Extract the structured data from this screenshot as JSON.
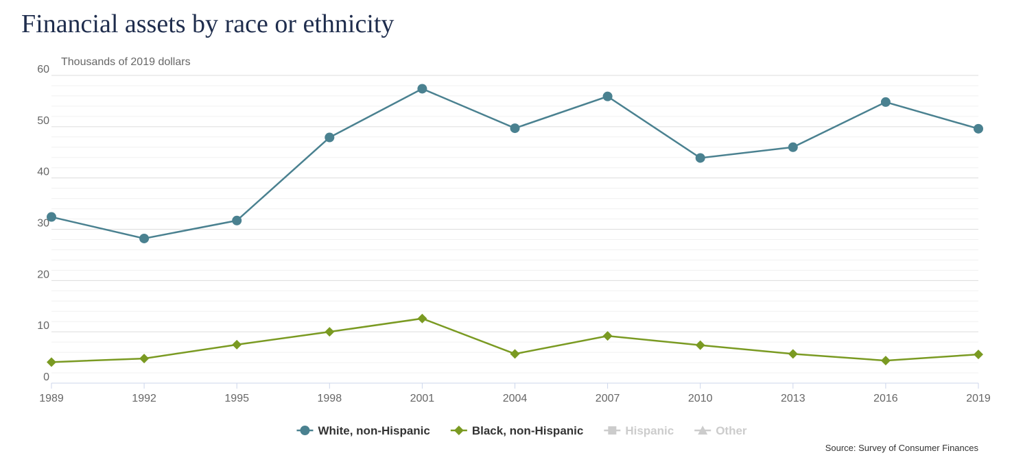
{
  "chart_data": {
    "type": "line",
    "title": "Financial assets by race or ethnicity",
    "y_label": "Thousands of 2019 dollars",
    "source": "Source: Survey of Consumer Finances",
    "categories": [
      "1989",
      "1992",
      "1995",
      "1998",
      "2001",
      "2004",
      "2007",
      "2010",
      "2013",
      "2016",
      "2019"
    ],
    "series": [
      {
        "name": "White, non-Hispanic",
        "color": "#4a8190",
        "marker": "circle",
        "visible": true,
        "values": [
          32.4,
          28.2,
          31.7,
          47.9,
          57.4,
          49.7,
          55.9,
          43.9,
          46.0,
          54.8,
          49.6
        ]
      },
      {
        "name": "Black, non-Hispanic",
        "color": "#7a9a22",
        "marker": "diamond",
        "visible": true,
        "values": [
          4.1,
          4.8,
          7.5,
          10.0,
          12.6,
          5.7,
          9.2,
          7.4,
          5.7,
          4.4,
          5.6
        ]
      },
      {
        "name": "Hispanic",
        "color": "#cccccc",
        "marker": "square",
        "visible": false,
        "values": [
          null,
          null,
          null,
          null,
          null,
          null,
          null,
          null,
          null,
          null,
          null
        ]
      },
      {
        "name": "Other",
        "color": "#cccccc",
        "marker": "triangle",
        "visible": false,
        "values": [
          null,
          null,
          null,
          null,
          null,
          null,
          null,
          null,
          null,
          null,
          null
        ]
      }
    ],
    "ylim": [
      0,
      60
    ],
    "yticks": [
      0,
      10,
      20,
      30,
      40,
      50,
      60
    ],
    "minor_yticks": [
      2,
      4,
      6,
      8,
      12,
      14,
      16,
      18,
      22,
      24,
      26,
      28,
      32,
      34,
      36,
      38,
      42,
      44,
      46,
      48,
      52,
      54,
      56,
      58
    ],
    "grid": true,
    "legend": "bottom"
  }
}
